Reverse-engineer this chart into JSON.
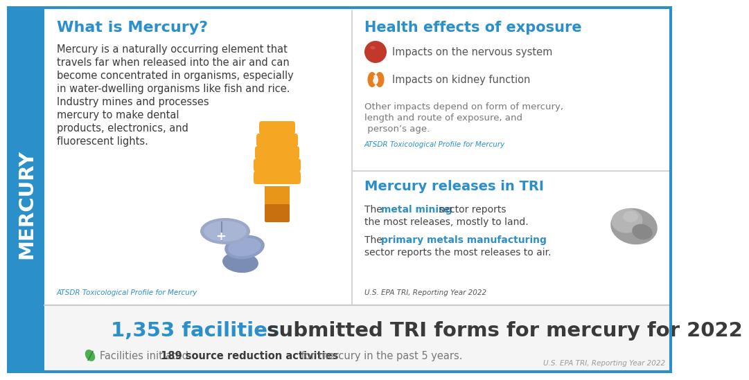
{
  "bg_color": "#ffffff",
  "sidebar_color": "#2b8fc9",
  "sidebar_text": "MERCURY",
  "sidebar_text_color": "#ffffff",
  "border_color": "#2b8fc9",
  "left_title": "What is Mercury?",
  "left_title_color": "#2b8fc9",
  "left_body_lines": [
    "Mercury is a naturally occurring element that",
    "travels far when released into the air and can",
    "become concentrated in organisms, especially",
    "in water-dwelling organisms like fish and rice.",
    "Industry mines and processes",
    "mercury to make dental",
    "products, electronics, and",
    "fluorescent lights."
  ],
  "left_body_color": "#3a3a3a",
  "left_cite": "ATSDR Toxicological Profile for Mercury",
  "left_cite_color": "#2b8fc9",
  "right_top_title": "Health effects of exposure",
  "right_top_title_color": "#2b8fc9",
  "health_item1": "Impacts on the nervous system",
  "health_item2": "Impacts on kidney function",
  "health_other": "Other impacts depend on form of mercury,\nlength and route of exposure, and\n person’s age.",
  "health_cite": "ATSDR Toxicological Profile for Mercury",
  "health_text_color": "#555555",
  "right_bottom_title": "Mercury releases in TRI",
  "right_bottom_title_color": "#2b8fc9",
  "releases_text_color": "#444444",
  "releases_highlight_color": "#2b8fc9",
  "releases_cite": "U.S. EPA TRI, Reporting Year 2022",
  "releases_cite_color": "#555555",
  "bottom_num": "1,353 facilities",
  "bottom_rest": " submitted TRI forms for mercury for 2022",
  "bottom_num_color": "#2b8fc9",
  "bottom_rest_color": "#3a3a3a",
  "bottom_sub_plain1": "Facilities initiated ",
  "bottom_sub_bold": "189 source reduction activities",
  "bottom_sub_plain2": " for mercury in the past 5 years.",
  "bottom_sub_color": "#777777",
  "bottom_sub_bold_color": "#3a3a3a",
  "bottom_cite": "U.S. EPA TRI, Reporting Year 2022",
  "bottom_cite_color": "#999999",
  "divider_color": "#cccccc",
  "orange": "#F5A623",
  "pill_color": "#9BA8C8",
  "brain_color": "#C0392B",
  "kidney_color": "#E67E22",
  "rock_color": "#8B8B8B"
}
